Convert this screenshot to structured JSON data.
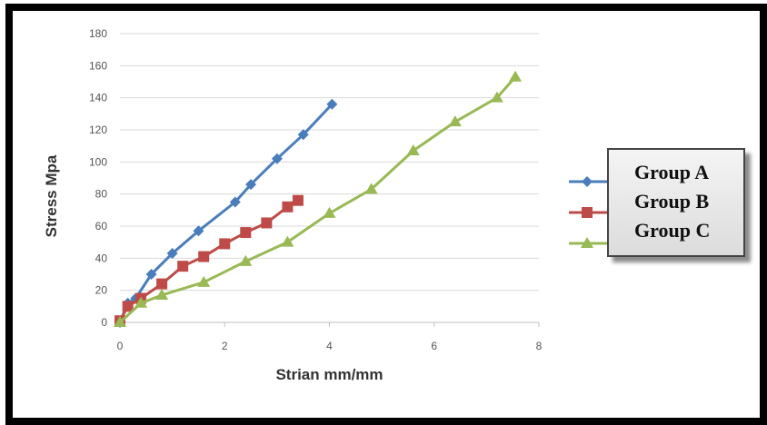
{
  "chart_data": {
    "type": "line",
    "title": "",
    "xlabel": "Strian mm/mm",
    "ylabel": "Stress Mpa",
    "xlim": [
      0,
      8
    ],
    "ylim": [
      0,
      180
    ],
    "xticks": [
      0,
      2,
      4,
      6,
      8
    ],
    "yticks": [
      0,
      20,
      40,
      60,
      80,
      100,
      120,
      140,
      160,
      180
    ],
    "grid": true,
    "legend_position": "right",
    "series": [
      {
        "name": "Group A",
        "color": "#4a7ebb",
        "marker": "diamond",
        "points": [
          [
            0,
            0
          ],
          [
            0.15,
            12
          ],
          [
            0.3,
            15
          ],
          [
            0.6,
            30
          ],
          [
            1.0,
            43
          ],
          [
            1.5,
            57
          ],
          [
            2.2,
            75
          ],
          [
            2.5,
            86
          ],
          [
            3.0,
            102
          ],
          [
            3.5,
            117
          ],
          [
            4.05,
            136
          ]
        ]
      },
      {
        "name": "Group B",
        "color": "#be4b48",
        "marker": "square",
        "points": [
          [
            0,
            1
          ],
          [
            0.15,
            10
          ],
          [
            0.4,
            15
          ],
          [
            0.8,
            24
          ],
          [
            1.2,
            35
          ],
          [
            1.6,
            41
          ],
          [
            2.0,
            49
          ],
          [
            2.4,
            56
          ],
          [
            2.8,
            62
          ],
          [
            3.2,
            72
          ],
          [
            3.4,
            76
          ]
        ]
      },
      {
        "name": "Group C",
        "color": "#98b954",
        "marker": "triangle",
        "points": [
          [
            0,
            0
          ],
          [
            0.4,
            12
          ],
          [
            0.8,
            17
          ],
          [
            1.6,
            25
          ],
          [
            2.4,
            38
          ],
          [
            3.2,
            50
          ],
          [
            4.0,
            68
          ],
          [
            4.8,
            83
          ],
          [
            5.6,
            107
          ],
          [
            6.4,
            125
          ],
          [
            7.2,
            140
          ],
          [
            7.55,
            153
          ]
        ]
      }
    ]
  }
}
